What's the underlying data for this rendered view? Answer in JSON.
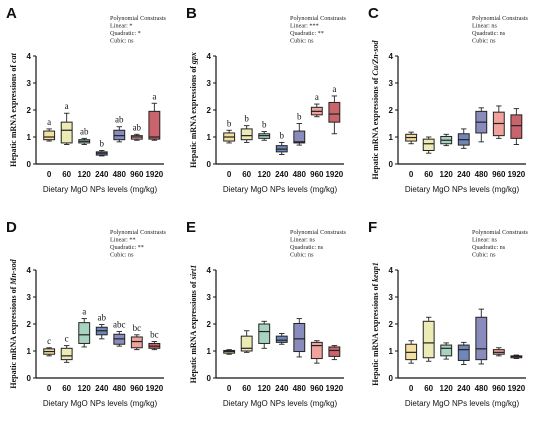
{
  "chart_data": [
    {
      "panel": "A",
      "type": "box",
      "ylabel_prefix": "Hepatic mRNA expressions of ",
      "gene": "cat",
      "xlabel": "Dietary MgO NPs levels (mg/kg)",
      "categories": [
        "0",
        "60",
        "120",
        "240",
        "480",
        "960",
        "1920"
      ],
      "ylim": [
        0,
        4
      ],
      "yticks": [
        0,
        1,
        2,
        3,
        4
      ],
      "annotation": [
        "Polynomial Constrasts",
        "Linear: *",
        "Quadratic: *",
        "Cubic: ns"
      ],
      "letters": [
        "a",
        "a",
        "ab",
        "b",
        "ab",
        "ab",
        "a"
      ],
      "boxes": [
        {
          "min": 0.85,
          "q1": 0.9,
          "median": 1.0,
          "q3": 1.22,
          "max": 1.3
        },
        {
          "min": 0.72,
          "q1": 0.78,
          "median": 1.25,
          "q3": 1.55,
          "max": 1.88
        },
        {
          "min": 0.72,
          "q1": 0.78,
          "median": 0.84,
          "q3": 0.9,
          "max": 0.95
        },
        {
          "min": 0.3,
          "q1": 0.33,
          "median": 0.4,
          "q3": 0.45,
          "max": 0.5
        },
        {
          "min": 0.82,
          "q1": 0.9,
          "median": 1.05,
          "q3": 1.25,
          "max": 1.38
        },
        {
          "min": 0.88,
          "q1": 0.92,
          "median": 1.0,
          "q3": 1.05,
          "max": 1.1
        },
        {
          "min": 0.88,
          "q1": 0.92,
          "median": 1.0,
          "q3": 1.95,
          "max": 2.25
        }
      ]
    },
    {
      "panel": "B",
      "type": "box",
      "ylabel_prefix": "Hepatic mRNA expressions of ",
      "gene": "gpx",
      "xlabel": "Dietary MgO NPs levels (mg/kg)",
      "categories": [
        "0",
        "60",
        "120",
        "240",
        "480",
        "960",
        "1920"
      ],
      "ylim": [
        0,
        4
      ],
      "yticks": [
        0,
        1,
        2,
        3,
        4
      ],
      "annotation": [
        "Polynomial Constrasts",
        "Linear: ***",
        "Quadratic: **",
        "Cubic: ns"
      ],
      "letters": [
        "b",
        "b",
        "b",
        "b",
        "b",
        "a",
        "a"
      ],
      "boxes": [
        {
          "min": 0.78,
          "q1": 0.85,
          "median": 1.0,
          "q3": 1.15,
          "max": 1.25
        },
        {
          "min": 0.8,
          "q1": 0.9,
          "median": 1.05,
          "q3": 1.3,
          "max": 1.42
        },
        {
          "min": 0.88,
          "q1": 0.95,
          "median": 1.05,
          "q3": 1.12,
          "max": 1.2
        },
        {
          "min": 0.35,
          "q1": 0.45,
          "median": 0.55,
          "q3": 0.68,
          "max": 0.8
        },
        {
          "min": 0.7,
          "q1": 0.78,
          "median": 0.82,
          "q3": 1.22,
          "max": 1.5
        },
        {
          "min": 1.75,
          "q1": 1.82,
          "median": 1.95,
          "q3": 2.1,
          "max": 2.22
        },
        {
          "min": 1.12,
          "q1": 1.55,
          "median": 1.85,
          "q3": 2.28,
          "max": 2.52
        }
      ]
    },
    {
      "panel": "C",
      "type": "box",
      "ylabel_prefix": "Hepatic mRNA expressions of ",
      "gene": "Cu/Zn-sod",
      "xlabel": "Dietary MgO NPs levels (mg/kg)",
      "categories": [
        "0",
        "60",
        "120",
        "240",
        "480",
        "960",
        "1920"
      ],
      "ylim": [
        0,
        4
      ],
      "yticks": [
        0,
        1,
        2,
        3,
        4
      ],
      "annotation": [
        "Polynomial Constrasts",
        "Linear: ns",
        "Quadratic: ns",
        "Cubic: ns"
      ],
      "letters": [],
      "boxes": [
        {
          "min": 0.75,
          "q1": 0.85,
          "median": 0.98,
          "q3": 1.1,
          "max": 1.18
        },
        {
          "min": 0.4,
          "q1": 0.5,
          "median": 0.75,
          "q3": 0.92,
          "max": 1.0
        },
        {
          "min": 0.68,
          "q1": 0.75,
          "median": 0.88,
          "q3": 1.02,
          "max": 1.1
        },
        {
          "min": 0.58,
          "q1": 0.7,
          "median": 0.9,
          "q3": 1.12,
          "max": 1.3
        },
        {
          "min": 0.82,
          "q1": 1.15,
          "median": 1.55,
          "q3": 1.95,
          "max": 2.08
        },
        {
          "min": 0.95,
          "q1": 1.05,
          "median": 1.5,
          "q3": 1.92,
          "max": 2.15
        },
        {
          "min": 0.72,
          "q1": 0.95,
          "median": 1.42,
          "q3": 1.82,
          "max": 2.05
        }
      ]
    },
    {
      "panel": "D",
      "type": "box",
      "ylabel_prefix": "Hepatic mRNA expressions of ",
      "gene": "Mn-sod",
      "xlabel": "Dietary MgO NPs levels (mg/kg)",
      "categories": [
        "0",
        "60",
        "120",
        "240",
        "480",
        "960",
        "1920"
      ],
      "ylim": [
        0,
        4
      ],
      "yticks": [
        0,
        1,
        2,
        3,
        4
      ],
      "annotation": [
        "Polynomial Constrasts",
        "Linear: **",
        "Quadratic: **",
        "Cubic: ns"
      ],
      "letters": [
        "c",
        "c",
        "a",
        "ab",
        "abc",
        "bc",
        "bc"
      ],
      "boxes": [
        {
          "min": 0.82,
          "q1": 0.88,
          "median": 0.98,
          "q3": 1.08,
          "max": 1.12
        },
        {
          "min": 0.58,
          "q1": 0.68,
          "median": 0.82,
          "q3": 1.1,
          "max": 1.2
        },
        {
          "min": 1.15,
          "q1": 1.28,
          "median": 1.6,
          "q3": 2.05,
          "max": 2.2
        },
        {
          "min": 1.45,
          "q1": 1.6,
          "median": 1.75,
          "q3": 1.88,
          "max": 1.98
        },
        {
          "min": 1.18,
          "q1": 1.25,
          "median": 1.45,
          "q3": 1.62,
          "max": 1.72
        },
        {
          "min": 1.05,
          "q1": 1.12,
          "median": 1.35,
          "q3": 1.52,
          "max": 1.6
        },
        {
          "min": 1.05,
          "q1": 1.1,
          "median": 1.18,
          "q3": 1.28,
          "max": 1.35
        }
      ]
    },
    {
      "panel": "E",
      "type": "box",
      "ylabel_prefix": "Hepatic mRNA expressions of ",
      "gene": "sirt1",
      "xlabel": "Dietary MgO NPs levels (mg/kg)",
      "categories": [
        "0",
        "60",
        "120",
        "240",
        "480",
        "960",
        "1920"
      ],
      "ylim": [
        0,
        4
      ],
      "yticks": [
        0,
        1,
        2,
        3,
        4
      ],
      "annotation": [
        "Polynomial Constrasts",
        "Linear: ns",
        "Quadratic: ns",
        "Cubic: ns"
      ],
      "letters": [],
      "boxes": [
        {
          "min": 0.88,
          "q1": 0.92,
          "median": 0.98,
          "q3": 1.02,
          "max": 1.05
        },
        {
          "min": 0.95,
          "q1": 1.0,
          "median": 1.1,
          "q3": 1.55,
          "max": 1.75
        },
        {
          "min": 1.1,
          "q1": 1.28,
          "median": 1.72,
          "q3": 2.0,
          "max": 2.1
        },
        {
          "min": 1.25,
          "q1": 1.32,
          "median": 1.4,
          "q3": 1.55,
          "max": 1.65
        },
        {
          "min": 0.78,
          "q1": 0.98,
          "median": 1.45,
          "q3": 2.02,
          "max": 2.2
        },
        {
          "min": 0.55,
          "q1": 0.72,
          "median": 1.2,
          "q3": 1.32,
          "max": 1.38
        },
        {
          "min": 0.68,
          "q1": 0.8,
          "median": 1.02,
          "q3": 1.15,
          "max": 1.2
        }
      ]
    },
    {
      "panel": "F",
      "type": "box",
      "ylabel_prefix": "Hepatic mRNA expressions of ",
      "gene": "keap1",
      "xlabel": "Dietary MgO NPs levels (mg/kg)",
      "categories": [
        "0",
        "60",
        "120",
        "240",
        "480",
        "960",
        "1920"
      ],
      "ylim": [
        0,
        4
      ],
      "yticks": [
        0,
        1,
        2,
        3,
        4
      ],
      "annotation": [
        "Polynomial Constrasts",
        "Linear: ns",
        "Quadratic: ns",
        "Cubic: ns"
      ],
      "letters": [],
      "boxes": [
        {
          "min": 0.55,
          "q1": 0.68,
          "median": 0.95,
          "q3": 1.25,
          "max": 1.38
        },
        {
          "min": 0.62,
          "q1": 0.75,
          "median": 1.3,
          "q3": 2.1,
          "max": 2.25
        },
        {
          "min": 0.7,
          "q1": 0.82,
          "median": 1.1,
          "q3": 1.22,
          "max": 1.3
        },
        {
          "min": 0.5,
          "q1": 0.65,
          "median": 1.05,
          "q3": 1.22,
          "max": 1.32
        },
        {
          "min": 0.52,
          "q1": 0.68,
          "median": 1.08,
          "q3": 2.25,
          "max": 2.55
        },
        {
          "min": 0.82,
          "q1": 0.88,
          "median": 0.95,
          "q3": 1.05,
          "max": 1.12
        },
        {
          "min": 0.72,
          "q1": 0.75,
          "median": 0.8,
          "q3": 0.82,
          "max": 0.85
        }
      ]
    }
  ],
  "colors": {
    "box_fills": [
      "#f3dfa2",
      "#eceab5",
      "#a9d3c1",
      "#7086b8",
      "#8a8bbd",
      "#efa39c",
      "#c9646c"
    ],
    "outline": "#222222",
    "text": "#111111"
  }
}
